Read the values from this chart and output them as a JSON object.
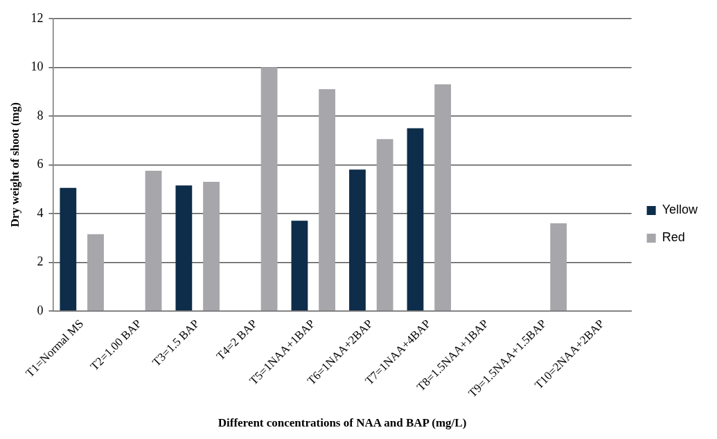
{
  "chart_data": {
    "type": "bar",
    "xlabel": "Different concentrations of NAA and BAP (mg/L)",
    "ylabel": "Dry weight of shoot (mg)",
    "categories": [
      "T1=Normal MS",
      "T2=1.00 BAP",
      "T3=1.5 BAP",
      "T4=2 BAP",
      "T5=1NAA+1BAP",
      "T6=1NAA+2BAP",
      "T7=1NAA+4BAP",
      "T8=1.5NAA+1BAP",
      "T9=1.5NAA+1.5BAP",
      "T10=2NAA+2BAP"
    ],
    "series": [
      {
        "name": "Yellow",
        "color": "#0d2d4a",
        "values": [
          5.05,
          0,
          5.15,
          0,
          3.7,
          5.8,
          7.5,
          0,
          0,
          0
        ]
      },
      {
        "name": "Red",
        "color": "#a6a6ab",
        "values": [
          3.15,
          5.75,
          5.3,
          10.0,
          9.1,
          7.05,
          9.3,
          0,
          3.6,
          0
        ]
      }
    ],
    "ylim": [
      0,
      12
    ],
    "yticks": [
      0,
      2,
      4,
      6,
      8,
      10,
      12
    ],
    "grid": "y",
    "legend": "right"
  }
}
